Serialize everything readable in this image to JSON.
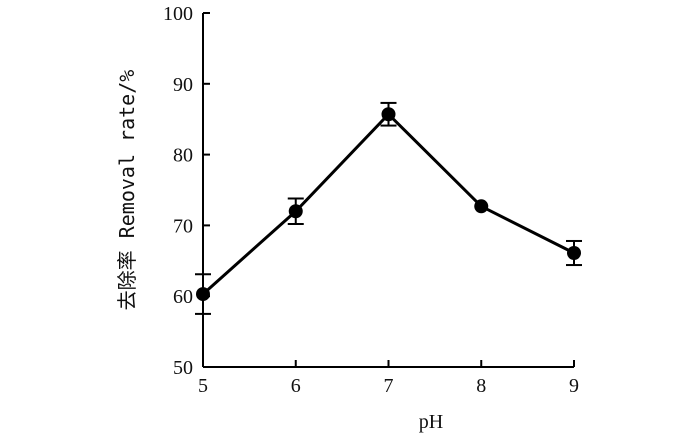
{
  "chart_data": {
    "type": "line",
    "x": [
      5,
      6,
      7,
      8,
      9
    ],
    "series": [
      {
        "values": [
          60.3,
          72.0,
          85.7,
          72.7,
          66.1
        ],
        "errors": [
          2.8,
          1.8,
          1.6,
          0.0,
          1.7
        ]
      }
    ],
    "xlabel": "pH",
    "ylabel": "去除率 Removal rate/%",
    "xlim": [
      5,
      9
    ],
    "ylim": [
      50,
      100
    ],
    "xticks": [
      "5",
      "6",
      "7",
      "8",
      "9"
    ],
    "yticks": [
      "50",
      "60",
      "70",
      "80",
      "90",
      "100"
    ],
    "grid": false,
    "colors": {
      "line": "#000000",
      "marker": "#000000"
    }
  }
}
